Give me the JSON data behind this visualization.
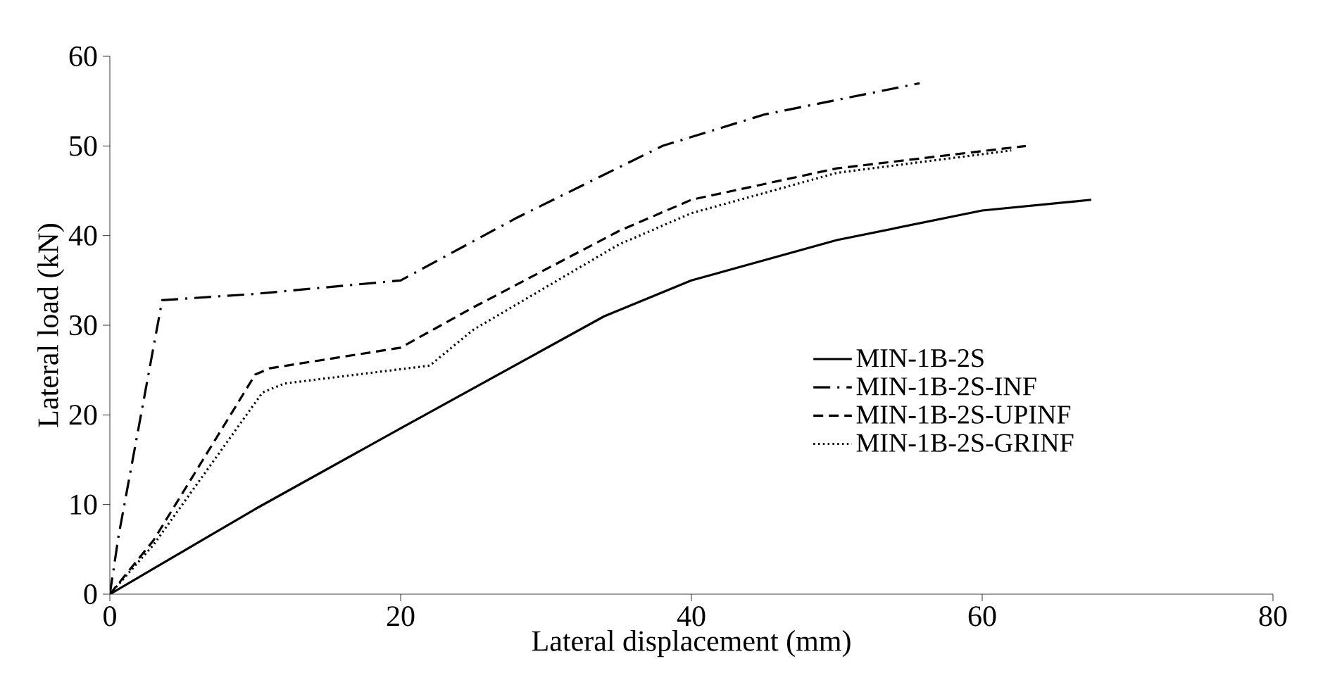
{
  "chart_data": {
    "type": "line",
    "xlabel": "Lateral displacement  (mm)",
    "ylabel": "Lateral  load  (kN)",
    "xlim": [
      0,
      80
    ],
    "xticks": [
      0,
      20,
      40,
      60,
      80
    ],
    "ylim": [
      0,
      60
    ],
    "yticks": [
      0,
      10,
      20,
      30,
      40,
      50,
      60
    ],
    "grid": false,
    "legend": "right",
    "marker": "none",
    "series": [
      {
        "name": "MIN-1B-2S",
        "color": "#000000",
        "line_style": "solid",
        "x": [
          0,
          10,
          20,
          34,
          40,
          50,
          60,
          67.5
        ],
        "values": [
          0,
          9.5,
          18.5,
          31,
          35,
          39.5,
          42.8,
          44
        ]
      },
      {
        "name": "MIN-1B-2S-INF",
        "color": "#000000",
        "line_style": "dashdot",
        "x": [
          0,
          0.6,
          3.6,
          10,
          20,
          28,
          38,
          45,
          55.7
        ],
        "values": [
          0,
          6.5,
          32.8,
          33.5,
          35,
          42,
          50,
          53.5,
          57
        ]
      },
      {
        "name": "MIN-1B-2S-UPINF",
        "color": "#000000",
        "line_style": "dashed",
        "x": [
          0,
          3,
          10,
          11,
          20,
          25,
          35,
          40,
          50,
          63
        ],
        "values": [
          0,
          6,
          24.5,
          25.2,
          27.5,
          32,
          40.5,
          44,
          47.5,
          50
        ]
      },
      {
        "name": "MIN-1B-2S-GRINF",
        "color": "#000000",
        "line_style": "dotted",
        "x": [
          0,
          3,
          10.5,
          12,
          22,
          25,
          35,
          40,
          50,
          62
        ],
        "values": [
          0,
          5.5,
          22.5,
          23.5,
          25.5,
          29.5,
          39,
          42.5,
          47,
          49.5
        ]
      }
    ]
  }
}
